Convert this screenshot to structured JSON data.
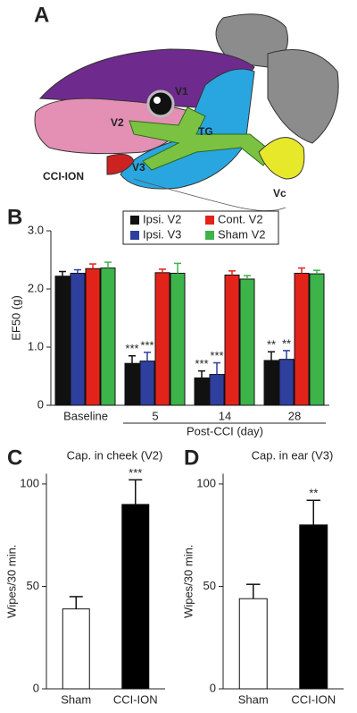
{
  "panel_a": {
    "letter": "A",
    "labels": [
      "V1",
      "V2",
      "TG",
      "V3",
      "Vc",
      "CCI-ION"
    ]
  },
  "chart_data": [
    {
      "type": "bar",
      "panel": "B",
      "ylabel": "EF50 (g)",
      "xlabel": "Post-CCI (day)",
      "categories": [
        "Baseline",
        "5",
        "14",
        "28"
      ],
      "ylim": [
        0,
        3
      ],
      "yticks": [
        0,
        {
          "value": 1,
          "label": "1.0"
        },
        {
          "value": 2,
          "label": "2.0"
        },
        {
          "value": 3,
          "label": "3.0"
        }
      ],
      "series": [
        {
          "name": "Ipsi. V2",
          "color": "#111111",
          "values": [
            2.22,
            0.72,
            0.47,
            0.77
          ],
          "errors": [
            0.08,
            0.13,
            0.12,
            0.15
          ],
          "significance": [
            null,
            "***",
            "***",
            "**"
          ]
        },
        {
          "name": "Ipsi. V3",
          "color": "#2e3f9e",
          "values": [
            2.27,
            0.76,
            0.53,
            0.79
          ],
          "errors": [
            0.06,
            0.15,
            0.2,
            0.15
          ],
          "significance": [
            null,
            "***",
            "***",
            "**"
          ]
        },
        {
          "name": "Cont. V2",
          "color": "#e2231a",
          "values": [
            2.35,
            2.28,
            2.24,
            2.27
          ],
          "errors": [
            0.08,
            0.06,
            0.07,
            0.09
          ]
        },
        {
          "name": "Sham V2",
          "color": "#3cb44a",
          "values": [
            2.36,
            2.27,
            2.17,
            2.26
          ],
          "errors": [
            0.1,
            0.17,
            0.06,
            0.06
          ]
        }
      ]
    },
    {
      "type": "bar",
      "panel": "C",
      "title": "Cap. in cheek (V2)",
      "ylabel": "Wipes/30 min.",
      "categories": [
        "Sham",
        "CCI-ION"
      ],
      "values": [
        39,
        90
      ],
      "errors": [
        6,
        12
      ],
      "colors": [
        "#ffffff",
        "#000000"
      ],
      "significance": [
        null,
        "***"
      ],
      "ylim": [
        0,
        105
      ],
      "yticks": [
        0,
        50,
        100
      ]
    },
    {
      "type": "bar",
      "panel": "D",
      "title": "Cap. in ear (V3)",
      "ylabel": "Wipes/30 min.",
      "categories": [
        "Sham",
        "CCI-ION"
      ],
      "values": [
        44,
        80
      ],
      "errors": [
        7,
        12
      ],
      "colors": [
        "#ffffff",
        "#000000"
      ],
      "significance": [
        null,
        "**"
      ],
      "ylim": [
        0,
        105
      ],
      "yticks": [
        0,
        50,
        100
      ]
    }
  ]
}
